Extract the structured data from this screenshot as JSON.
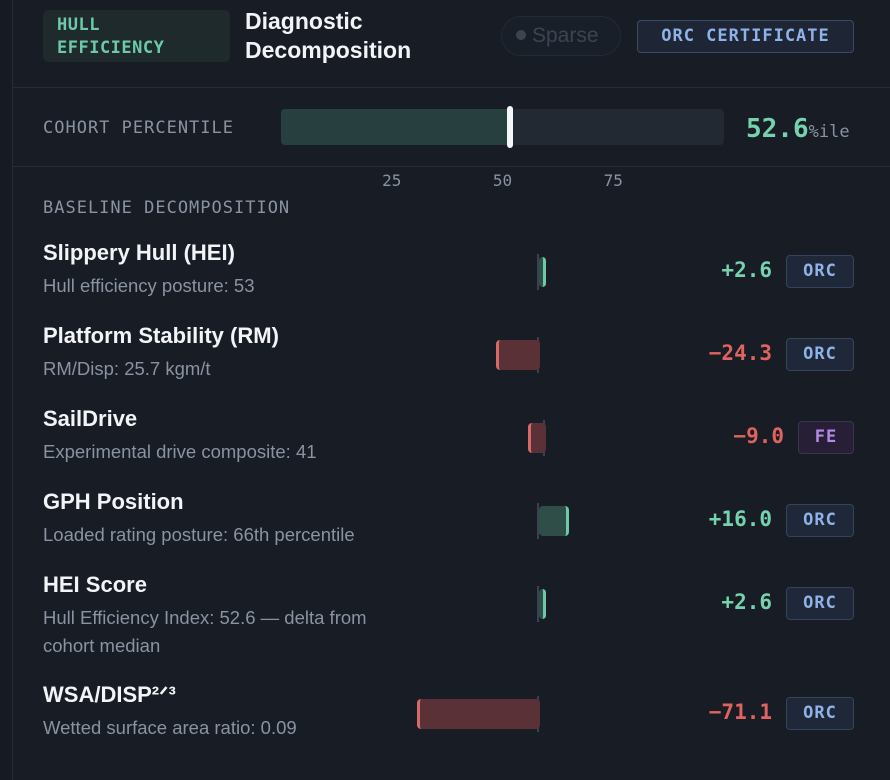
{
  "header": {
    "tag": "HULL\nEFFICIENCY",
    "title": "Diagnostic Decomposition",
    "sparse_label": "Sparse",
    "certificate_label": "ORC CERTIFICATE"
  },
  "percentile": {
    "label": "COHORT PERCENTILE",
    "value": 52.6,
    "value_text": "52.6",
    "unit": "%ile",
    "ticks": [
      "25",
      "50",
      "75"
    ]
  },
  "decomposition": {
    "title": "BASELINE DECOMPOSITION",
    "rows": [
      {
        "name": "Slippery Hull (HEI)",
        "desc": "Hull efficiency posture: 53",
        "value": 2.6,
        "value_text": "+2.6",
        "source": "ORC"
      },
      {
        "name": "Platform Stability (RM)",
        "desc": "RM/Disp: 25.7 kgm/t",
        "value": -24.3,
        "value_text": "−24.3",
        "source": "ORC"
      },
      {
        "name": "SailDrive",
        "desc": "Experimental drive composite: 41",
        "value": -9.0,
        "value_text": "−9.0",
        "source": "FE"
      },
      {
        "name": "GPH Position",
        "desc": "Loaded rating posture: 66th percentile",
        "value": 16.0,
        "value_text": "+16.0",
        "source": "ORC"
      },
      {
        "name": "HEI Score",
        "desc": "Hull Efficiency Index: 52.6 — delta from cohort median",
        "value": 2.6,
        "value_text": "+2.6",
        "source": "ORC"
      },
      {
        "name": "WSA/DISP²ᐟ³",
        "desc": "Wetted surface area ratio: 0.09",
        "value": -71.1,
        "value_text": "−71.1",
        "source": "ORC"
      }
    ]
  }
}
